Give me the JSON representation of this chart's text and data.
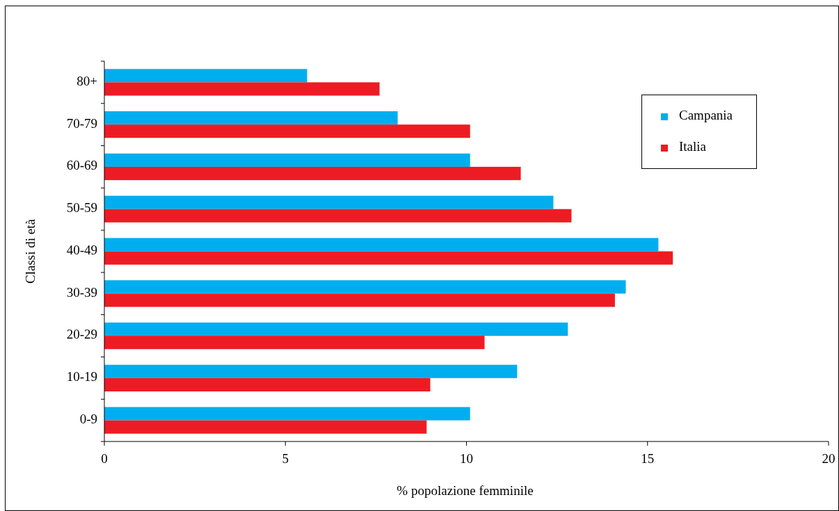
{
  "chart_data": {
    "type": "bar",
    "orientation": "horizontal",
    "xlabel": "% popolazione femminile",
    "ylabel": "Classi di età",
    "categories": [
      "80+",
      "70-79",
      "60-69",
      "50-59",
      "40-49",
      "30-39",
      "20-29",
      "10-19",
      "0-9"
    ],
    "series": [
      {
        "name": "Campania",
        "color": "#00aeef",
        "values": [
          5.6,
          8.1,
          10.1,
          12.4,
          15.3,
          14.4,
          12.8,
          11.4,
          10.1
        ]
      },
      {
        "name": "Italia",
        "color": "#ed1c24",
        "values": [
          7.6,
          10.1,
          11.5,
          12.9,
          15.7,
          14.1,
          10.5,
          9.0,
          8.9
        ]
      }
    ],
    "xlim": [
      0,
      20
    ],
    "xticks": [
      0,
      5,
      10,
      15,
      20
    ],
    "grid": false,
    "legend": "top right"
  }
}
